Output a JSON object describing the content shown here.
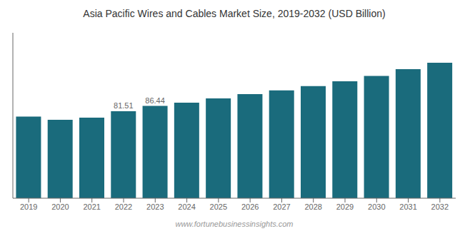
{
  "chart_data": {
    "type": "bar",
    "title": "Asia Pacific Wires and Cables Market Size, 2019-2032 (USD Billion)",
    "categories": [
      2019,
      2020,
      2021,
      2022,
      2023,
      2024,
      2025,
      2026,
      2027,
      2028,
      2029,
      2030,
      2031,
      2032
    ],
    "values": [
      76.5,
      73.5,
      75.5,
      81.51,
      86.44,
      89.5,
      93.5,
      97.5,
      101.0,
      105.0,
      109.5,
      114.5,
      121.0,
      127.0
    ],
    "value_labels": [
      null,
      null,
      null,
      "81.51",
      "86.44",
      null,
      null,
      null,
      null,
      null,
      null,
      null,
      null,
      null
    ],
    "color": "#1a6b7c",
    "ylim": [
      0,
      155
    ],
    "grid": false,
    "tick_labels": "x",
    "annotations": [
      "www.fortunebusinessinsights.com"
    ]
  }
}
